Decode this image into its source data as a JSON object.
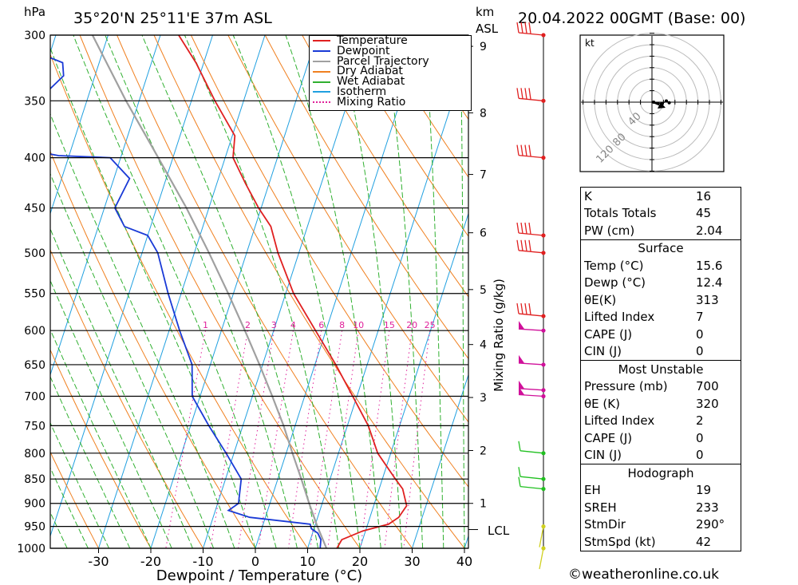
{
  "header": {
    "pressure_unit": "hPa",
    "location": "35°20'N  25°11'E  37m  ASL",
    "height_unit": "km",
    "height_unit_sub": "ASL",
    "datetime": "20.04.2022  00GMT  (Base: 00)"
  },
  "axes": {
    "xlabel": "Dewpoint / Temperature (°C)",
    "mixing_ratio_label": "Mixing Ratio (g/kg)",
    "lcl_label": "LCL"
  },
  "credit": "©weatheronline.co.uk",
  "colors": {
    "temperature": "#e02020",
    "dewpoint": "#1a3ad6",
    "parcel": "#a0a0a0",
    "dry_adiabat": "#f08020",
    "wet_adiabat": "#30b030",
    "isotherm": "#20a0e0",
    "mixing_ratio": "#e0209a"
  },
  "legend": [
    {
      "label": "Temperature",
      "color": "#e02020",
      "style": "solid"
    },
    {
      "label": "Dewpoint",
      "color": "#1a3ad6",
      "style": "solid"
    },
    {
      "label": "Parcel Trajectory",
      "color": "#a0a0a0",
      "style": "solid"
    },
    {
      "label": "Dry Adiabat",
      "color": "#f08020",
      "style": "solid"
    },
    {
      "label": "Wet Adiabat",
      "color": "#30b030",
      "style": "solid"
    },
    {
      "label": "Isotherm",
      "color": "#20a0e0",
      "style": "solid"
    },
    {
      "label": "Mixing Ratio",
      "color": "#e0209a",
      "style": "dotted"
    }
  ],
  "chart_data": {
    "type": "line",
    "pressure_levels": [
      300,
      350,
      400,
      450,
      500,
      550,
      600,
      650,
      700,
      750,
      800,
      850,
      900,
      950,
      1000
    ],
    "temperature_ticks": [
      -30,
      -20,
      -10,
      0,
      10,
      20,
      30,
      40
    ],
    "xlim": [
      -40,
      40
    ],
    "ylim": [
      1000,
      300
    ],
    "height_ticks_km": [
      1,
      2,
      3,
      4,
      5,
      6,
      7,
      8,
      9
    ],
    "height_pressure": [
      900,
      795,
      702,
      620,
      545,
      477,
      416,
      360,
      308
    ],
    "lcl_pressure": 957,
    "mixing_ratio_labels": [
      "1",
      "2",
      "3",
      "4",
      "6",
      "8",
      "10",
      "15",
      "20",
      "25"
    ],
    "mixing_ratio_values": [
      1,
      2,
      3,
      4,
      6,
      8,
      10,
      15,
      20,
      25
    ],
    "series": [
      {
        "name": "Temperature",
        "points": [
          [
            1000,
            15.6
          ],
          [
            980,
            16.0
          ],
          [
            960,
            19.5
          ],
          [
            945,
            24.0
          ],
          [
            930,
            25.5
          ],
          [
            905,
            26.3
          ],
          [
            870,
            24.5
          ],
          [
            850,
            22.5
          ],
          [
            800,
            17.5
          ],
          [
            750,
            14.0
          ],
          [
            700,
            9.2
          ],
          [
            650,
            4.0
          ],
          [
            600,
            -2.0
          ],
          [
            550,
            -8.5
          ],
          [
            500,
            -14.0
          ],
          [
            470,
            -17.0
          ],
          [
            450,
            -20.5
          ],
          [
            425,
            -24.5
          ],
          [
            400,
            -28.5
          ],
          [
            380,
            -29.5
          ],
          [
            350,
            -35.5
          ],
          [
            320,
            -41.5
          ],
          [
            300,
            -46.5
          ]
        ]
      },
      {
        "name": "Dewpoint",
        "points": [
          [
            1000,
            12.4
          ],
          [
            980,
            12.0
          ],
          [
            965,
            11.0
          ],
          [
            955,
            9.5
          ],
          [
            945,
            9.0
          ],
          [
            930,
            -3.0
          ],
          [
            915,
            -7.5
          ],
          [
            900,
            -6.0
          ],
          [
            850,
            -7.0
          ],
          [
            800,
            -11.5
          ],
          [
            750,
            -16.5
          ],
          [
            700,
            -21.5
          ],
          [
            650,
            -23.5
          ],
          [
            600,
            -28.0
          ],
          [
            550,
            -32.5
          ],
          [
            500,
            -37.0
          ],
          [
            480,
            -40.0
          ],
          [
            470,
            -45.0
          ],
          [
            450,
            -48.0
          ],
          [
            420,
            -47.0
          ],
          [
            400,
            -52.0
          ],
          [
            398,
            -62.0
          ],
          [
            392,
            -69.0
          ],
          [
            360,
            -71.0
          ],
          [
            330,
            -66.0
          ],
          [
            320,
            -67.0
          ],
          [
            300,
            -82.0
          ]
        ]
      },
      {
        "name": "Parcel Trajectory",
        "points": [
          [
            1000,
            13.6
          ],
          [
            950,
            10.5
          ],
          [
            900,
            7.5
          ],
          [
            850,
            4.5
          ],
          [
            800,
            1.2
          ],
          [
            750,
            -2.2
          ],
          [
            700,
            -6.2
          ],
          [
            650,
            -10.6
          ],
          [
            600,
            -15.5
          ],
          [
            550,
            -21.0
          ],
          [
            500,
            -27.2
          ],
          [
            450,
            -34.3
          ],
          [
            400,
            -42.8
          ],
          [
            350,
            -52.5
          ],
          [
            300,
            -63.0
          ]
        ]
      }
    ],
    "hodograph": {
      "unit_label": "kt",
      "ring_labels": [
        "40",
        "80",
        "120"
      ],
      "wind_points_kt": [
        [
          3,
          0
        ],
        [
          10,
          -2
        ],
        [
          18,
          -2
        ],
        [
          25,
          2
        ],
        [
          30,
          -1
        ]
      ],
      "storm_motion_kt": [
        18,
        -7
      ]
    }
  },
  "table": {
    "rows_top": [
      {
        "k": "K",
        "v": "16"
      },
      {
        "k": "Totals Totals",
        "v": "45"
      },
      {
        "k": "PW (cm)",
        "v": "2.04"
      }
    ],
    "surface": {
      "title": "Surface",
      "rows": [
        {
          "k": "Temp (°C)",
          "v": "15.6"
        },
        {
          "k": "Dewp (°C)",
          "v": "12.4"
        },
        {
          "k": "θE(K)",
          "v": "313"
        },
        {
          "k": "Lifted Index",
          "v": "7"
        },
        {
          "k": "CAPE (J)",
          "v": "0"
        },
        {
          "k": "CIN (J)",
          "v": "0"
        }
      ]
    },
    "most_unstable": {
      "title": "Most Unstable",
      "rows": [
        {
          "k": "Pressure (mb)",
          "v": "700"
        },
        {
          "k": "θE (K)",
          "v": "320"
        },
        {
          "k": "Lifted Index",
          "v": "2"
        },
        {
          "k": "CAPE (J)",
          "v": "0"
        },
        {
          "k": "CIN (J)",
          "v": "0"
        }
      ]
    },
    "hodograph": {
      "title": "Hodograph",
      "rows": [
        {
          "k": "EH",
          "v": "19"
        },
        {
          "k": "SREH",
          "v": "233"
        },
        {
          "k": "StmDir",
          "v": "290°"
        },
        {
          "k": "StmSpd (kt)",
          "v": "42"
        }
      ]
    }
  }
}
